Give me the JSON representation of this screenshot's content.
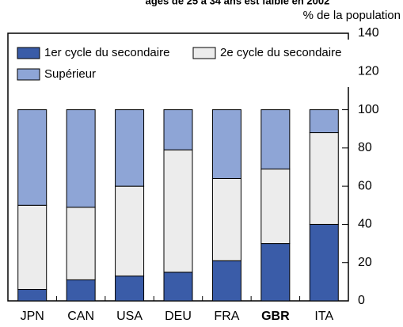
{
  "chart_data": {
    "type": "stacked_bar",
    "title": "âges de 25 à 34 ans est faible en 2002",
    "y_axis_label": "% de la population",
    "categories": [
      "JPN",
      "CAN",
      "USA",
      "DEU",
      "FRA",
      "GBR",
      "ITA"
    ],
    "bold_category": "GBR",
    "series": [
      {
        "name": "1er cycle du secondaire",
        "color": "#3a5ca8",
        "values": [
          6,
          11,
          13,
          15,
          21,
          30,
          40
        ]
      },
      {
        "name": "2e cycle du secondaire",
        "color": "#ececec",
        "values": [
          44,
          38,
          47,
          64,
          43,
          39,
          48
        ]
      },
      {
        "name": "Supérieur",
        "color": "#8ea5d6",
        "values": [
          50,
          51,
          40,
          21,
          36,
          31,
          12
        ]
      }
    ],
    "ylim": [
      0,
      140
    ],
    "yticks": [
      0,
      20,
      40,
      60,
      80,
      100,
      120,
      140
    ],
    "y_axis_side": "right"
  }
}
